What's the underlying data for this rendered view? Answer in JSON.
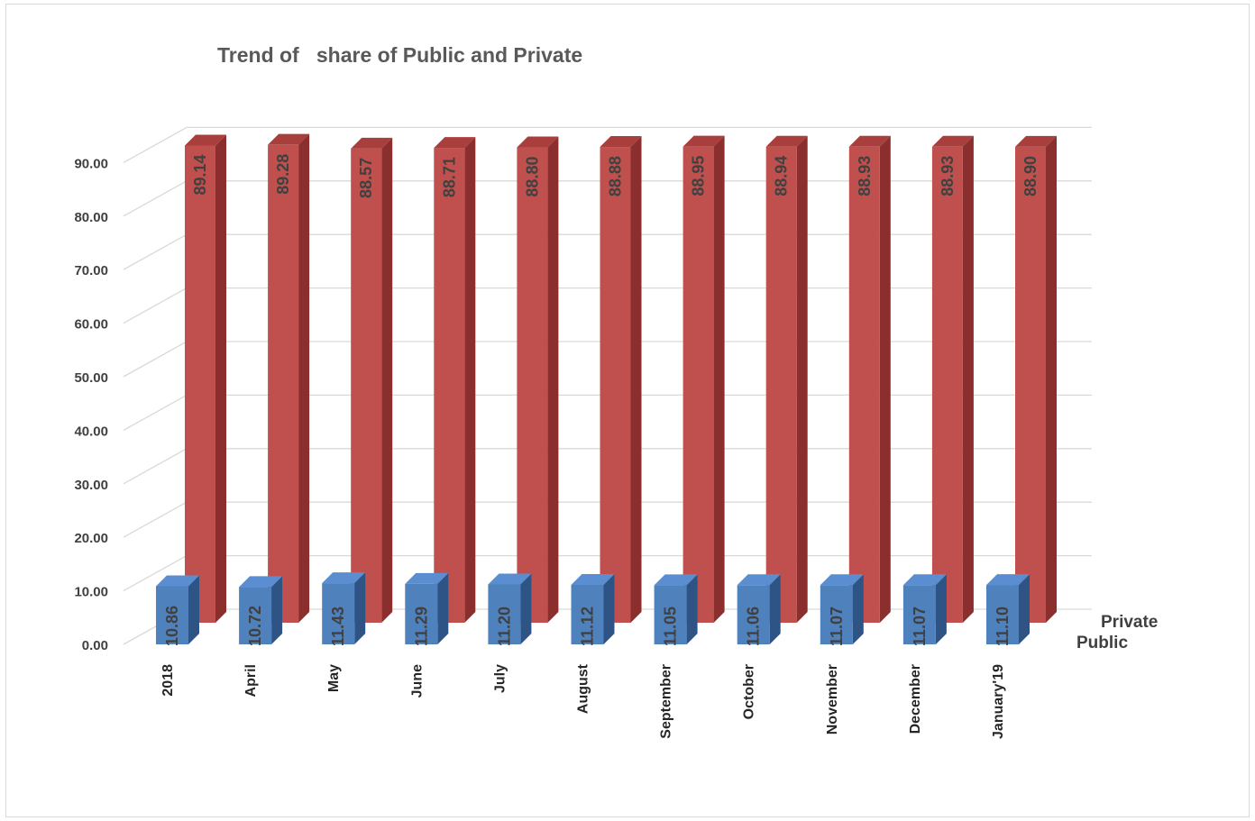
{
  "chart_data": {
    "type": "bar",
    "title": "Trend of   share of Public and Private",
    "categories": [
      "2018",
      "April",
      "May",
      "June",
      "July",
      "August",
      "September",
      "October",
      "November",
      "December",
      "January'19"
    ],
    "series": [
      {
        "name": "Public",
        "values": [
          10.86,
          10.72,
          11.43,
          11.29,
          11.2,
          11.12,
          11.05,
          11.06,
          11.07,
          11.07,
          11.1
        ],
        "labels": [
          "10.86",
          "10.72",
          "11.43",
          "11.29",
          "11.20",
          "11.12",
          "11.05",
          "11.06",
          "11.07",
          "11.07",
          "11.10"
        ]
      },
      {
        "name": "Private",
        "values": [
          89.14,
          89.28,
          88.57,
          88.71,
          88.8,
          88.88,
          88.95,
          88.94,
          88.93,
          88.93,
          88.9
        ],
        "labels": [
          "89.14",
          "89.28",
          "88.57",
          "88.71",
          "88.80",
          "88.88",
          "88.95",
          "88.94",
          "88.93",
          "88.93",
          "88.90"
        ]
      }
    ],
    "yticks": [
      "0.00",
      "10.00",
      "20.00",
      "30.00",
      "40.00",
      "50.00",
      "60.00",
      "70.00",
      "80.00",
      "90.00"
    ],
    "ylim": [
      0,
      90
    ],
    "grid": true,
    "style": "3d-column",
    "colors": {
      "public_front": "#4f81bd",
      "public_side": "#2e5486",
      "public_top": "#5b8ed0",
      "private_front": "#c0504d",
      "private_side": "#8a2f2d",
      "private_top": "#a93f3c",
      "grid": "#d9d9d9"
    }
  }
}
